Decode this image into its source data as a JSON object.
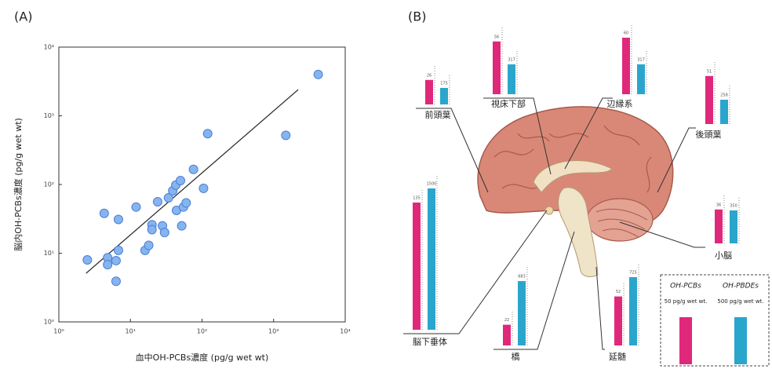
{
  "chart_data": [
    {
      "type": "scatter",
      "panel": "(A)",
      "x_label": "血中OH-PCBs濃度 (pg/g wet wt)",
      "y_label": "脳内OH-PCBs濃度 (pg/g wet wt)",
      "x": [
        2.5,
        4.3,
        4.8,
        4.8,
        6.8,
        6.8,
        6.3,
        6.3,
        12,
        16,
        18,
        20,
        20,
        24,
        28,
        30,
        34,
        39,
        43,
        50,
        44,
        55,
        60,
        52,
        76,
        105,
        120,
        1480,
        4200
      ],
      "y": [
        8,
        38,
        8.6,
        6.8,
        31,
        11,
        7.8,
        3.9,
        47,
        11,
        13,
        26,
        22,
        56,
        25,
        20,
        64,
        81,
        98,
        114,
        42,
        47,
        54,
        25,
        166,
        88,
        550,
        520,
        4000
      ],
      "color": "#86b4ee",
      "xlim": [
        1,
        10000
      ],
      "ylim": [
        1,
        10000
      ],
      "xticks": [
        {
          "value": 1,
          "label": "10⁰"
        },
        {
          "value": 10,
          "label": "10¹"
        },
        {
          "value": 100,
          "label": "10²"
        },
        {
          "value": 1000,
          "label": "10³"
        },
        {
          "value": 10000,
          "label": "10⁴"
        }
      ],
      "yticks": [
        {
          "value": 1,
          "label": "10⁰"
        },
        {
          "value": 10,
          "label": "10¹"
        },
        {
          "value": 100,
          "label": "10²"
        },
        {
          "value": 1000,
          "label": "10³"
        },
        {
          "value": 10000,
          "label": "10⁴"
        }
      ],
      "log_x": true,
      "log_y": true,
      "fit_line": {
        "x": [
          2.4,
          2200
        ],
        "y": [
          5.1,
          2400
        ],
        "color": "#333333"
      }
    },
    {
      "type": "brain-bars",
      "panel": "(B)",
      "categories": [
        "前頭葉",
        "視床下部",
        "辺縁系",
        "後頭葉",
        "小脳",
        "脳下垂体",
        "橋",
        "延髄"
      ],
      "series": [
        {
          "name": "OH-PCBs",
          "color": "#e0287a",
          "values": [
            26,
            56,
            60,
            51,
            36,
            135,
            22,
            52
          ],
          "scale_value": 50,
          "scale_label": "50 pg/g wet wt."
        },
        {
          "name": "OH-PBDEs",
          "color": "#2aa6cc",
          "values": [
            175,
            317,
            317,
            258,
            350,
            1500,
            683,
            725
          ],
          "scale_value": 500,
          "scale_label": "500 pg/g wet wt."
        }
      ]
    }
  ]
}
